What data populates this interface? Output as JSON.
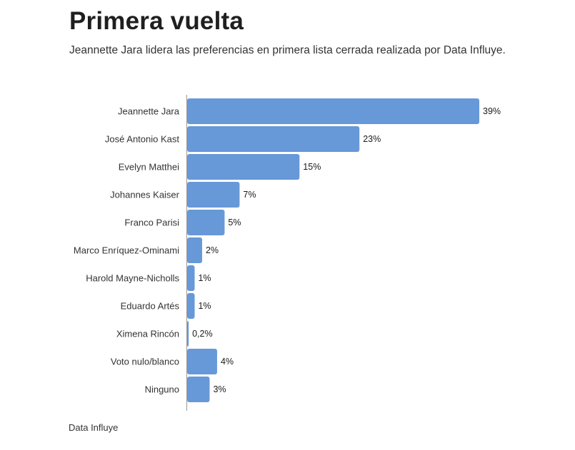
{
  "header": {
    "title": "Primera vuelta",
    "subtitle": "Jeannette Jara lidera las preferencias en primera lista cerrada realizada por Data Influye."
  },
  "footer": {
    "source": "Data Influye"
  },
  "colors": {
    "bar": "#6798d8",
    "axis": "#999999"
  },
  "chart_data": {
    "type": "bar",
    "orientation": "horizontal",
    "categories": [
      "Jeannette Jara",
      "José Antonio Kast",
      "Evelyn Matthei",
      "Johannes Kaiser",
      "Franco Parisi",
      "Marco Enríquez-Ominami",
      "Harold Mayne-Nicholls",
      "Eduardo Artés",
      "Ximena Rincón",
      "Voto nulo/blanco",
      "Ninguno"
    ],
    "values": [
      39,
      23,
      15,
      7,
      5,
      2,
      1,
      1,
      0.2,
      4,
      3
    ],
    "value_labels": [
      "39%",
      "23%",
      "15%",
      "7%",
      "5%",
      "2%",
      "1%",
      "1%",
      "0,2%",
      "4%",
      "3%"
    ],
    "xlim": [
      0,
      39
    ],
    "grid": false,
    "legend": "none"
  }
}
